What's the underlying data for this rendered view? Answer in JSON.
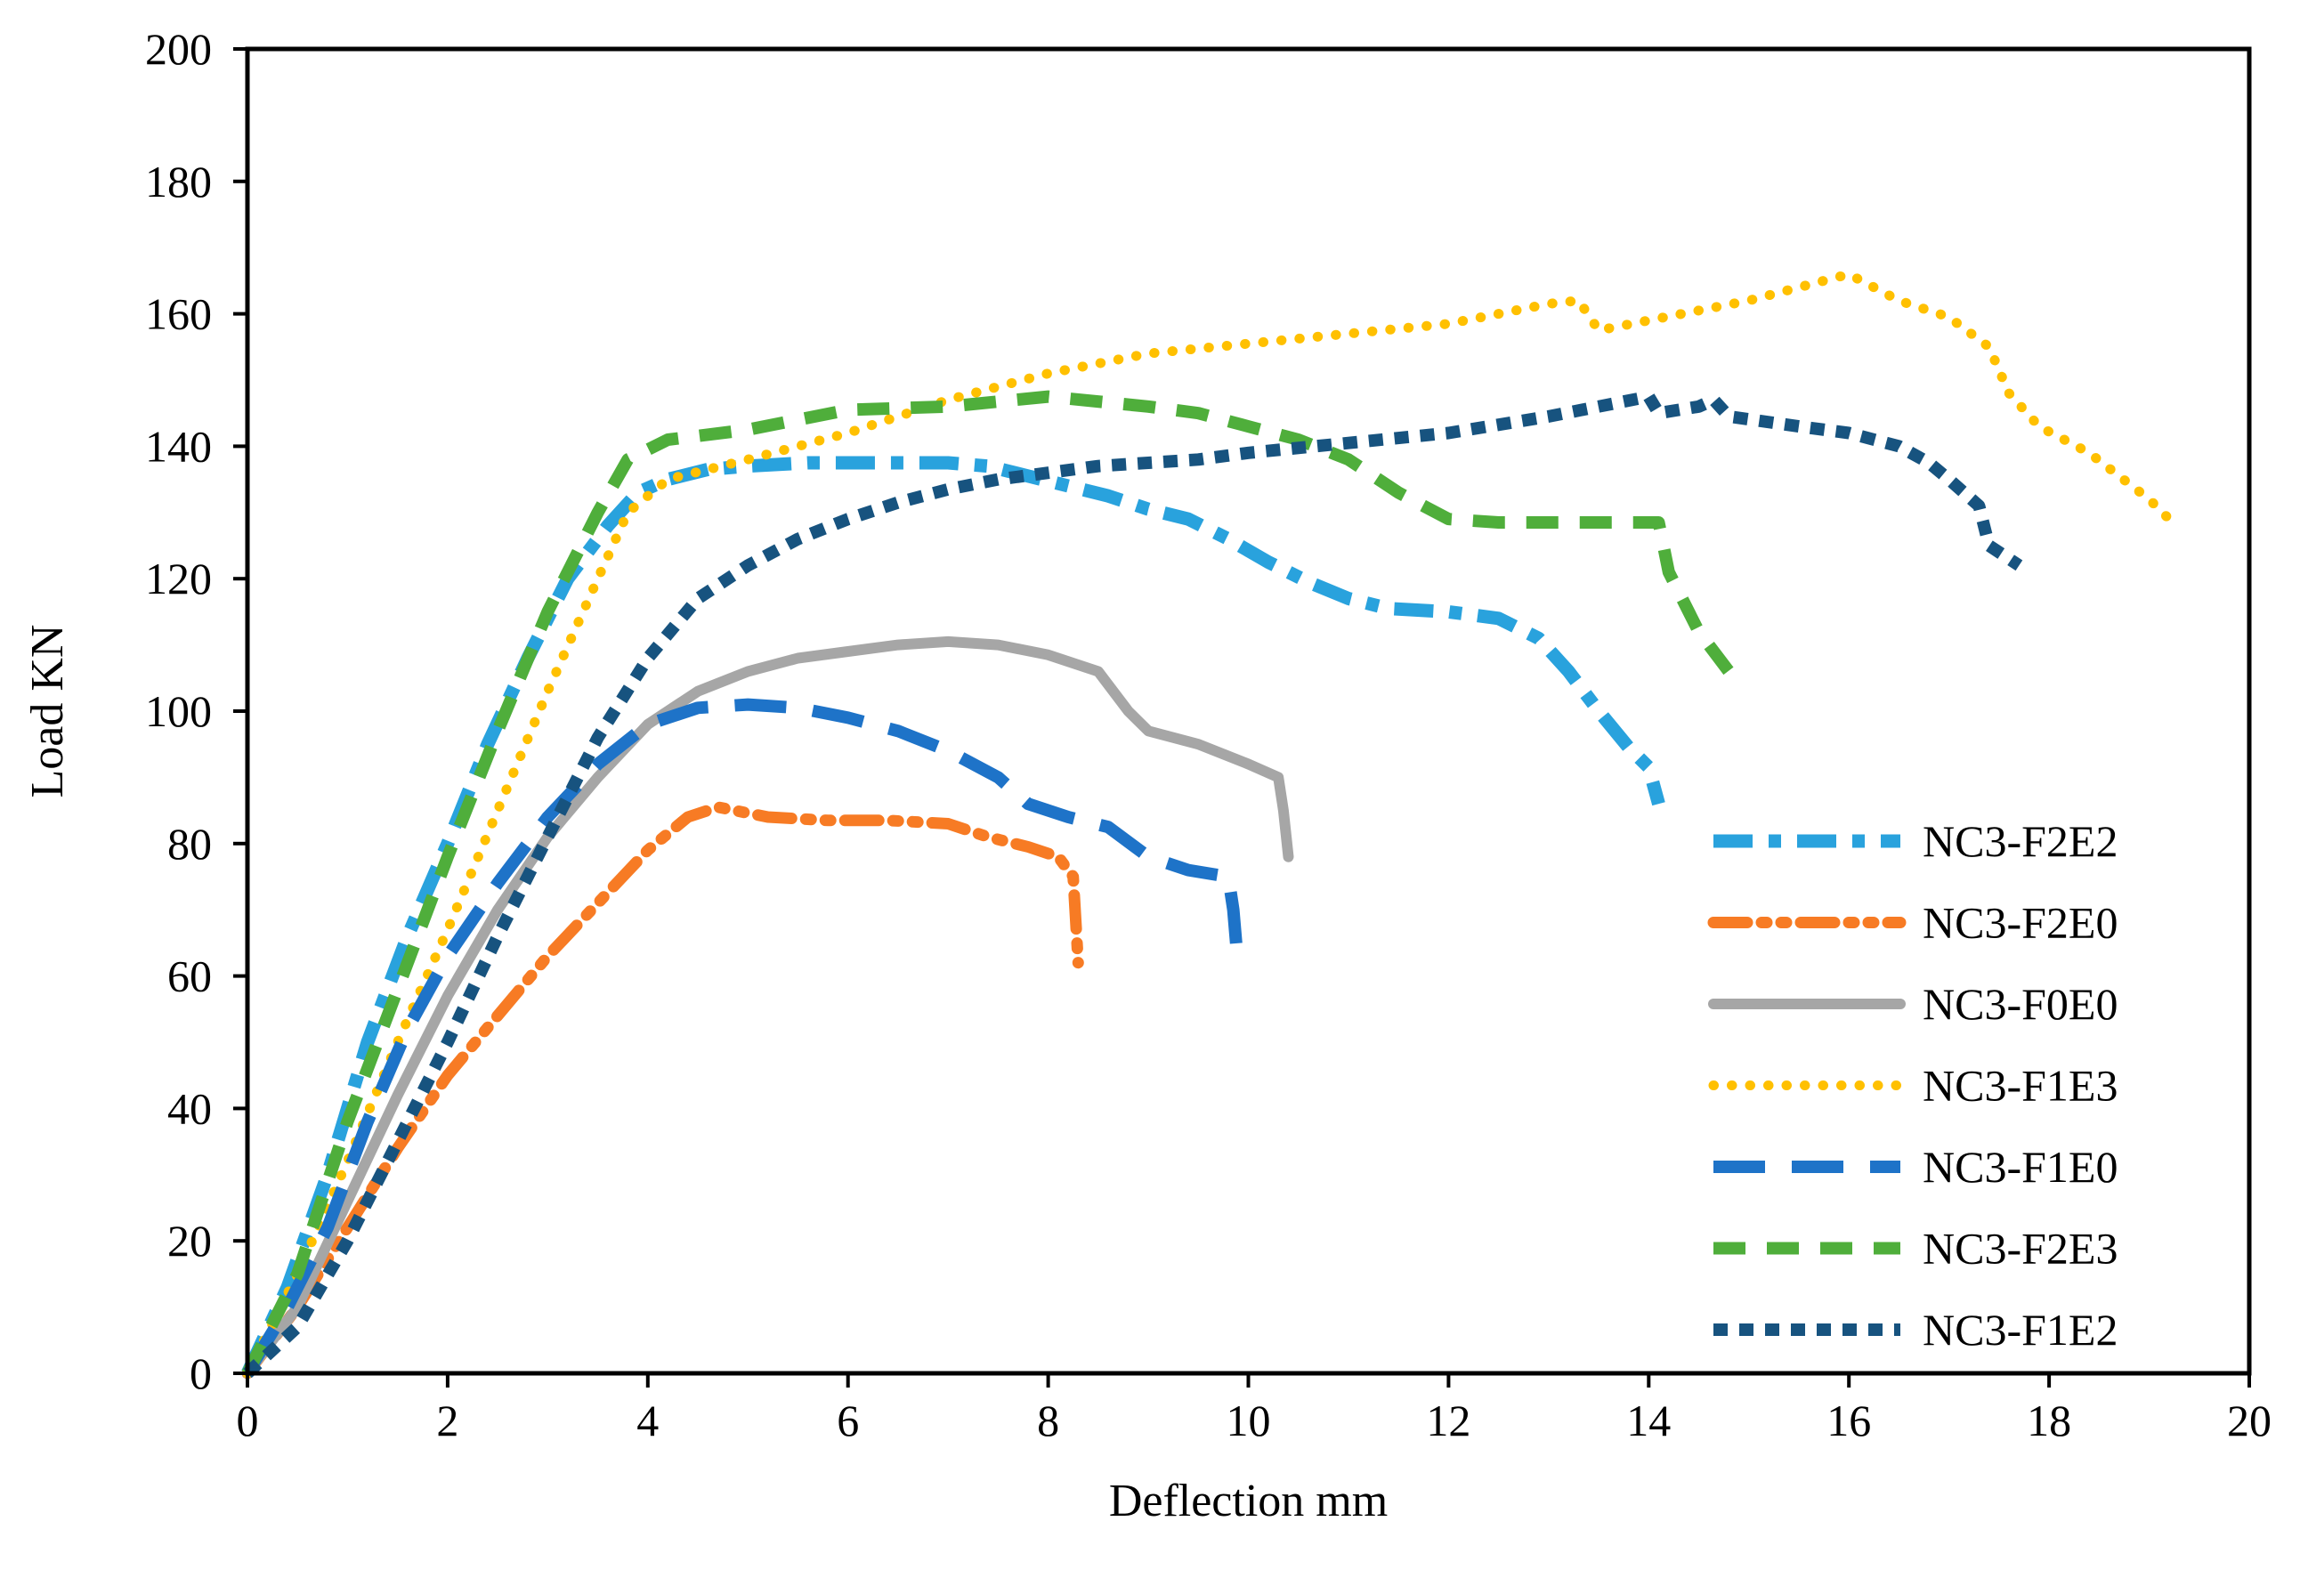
{
  "chart_data": {
    "type": "line",
    "title": "",
    "xlabel": "Deflection mm",
    "ylabel": "Load KN",
    "xlim": [
      0,
      20
    ],
    "ylim": [
      0,
      200
    ],
    "xticks": [
      0,
      2,
      4,
      6,
      8,
      10,
      12,
      14,
      16,
      18,
      20
    ],
    "yticks": [
      0,
      20,
      40,
      60,
      80,
      100,
      120,
      140,
      160,
      180,
      200
    ],
    "grid": false,
    "legend_position": "bottom-right",
    "series": [
      {
        "name": "NC3-F2E2",
        "color": "#29A2DD",
        "dash": "long-dash-dot",
        "points": [
          [
            0,
            0
          ],
          [
            0.4,
            13
          ],
          [
            0.8,
            30
          ],
          [
            1.2,
            50
          ],
          [
            1.6,
            66
          ],
          [
            2.0,
            80
          ],
          [
            2.4,
            95
          ],
          [
            2.8,
            108
          ],
          [
            3.2,
            120
          ],
          [
            3.6,
            128
          ],
          [
            3.9,
            133
          ],
          [
            4.2,
            135
          ],
          [
            4.6,
            136.5
          ],
          [
            5.0,
            137
          ],
          [
            5.6,
            137.5
          ],
          [
            6.4,
            137.5
          ],
          [
            7.0,
            137.5
          ],
          [
            7.4,
            137
          ],
          [
            7.8,
            135.5
          ],
          [
            8.2,
            134
          ],
          [
            8.6,
            132.5
          ],
          [
            9.0,
            130.5
          ],
          [
            9.4,
            129
          ],
          [
            9.8,
            126
          ],
          [
            10.2,
            122.5
          ],
          [
            10.6,
            119.5
          ],
          [
            11.0,
            117
          ],
          [
            11.4,
            115.5
          ],
          [
            12.0,
            115
          ],
          [
            12.5,
            114
          ],
          [
            12.9,
            111
          ],
          [
            13.2,
            106
          ],
          [
            13.5,
            100
          ],
          [
            13.8,
            94.5
          ],
          [
            14.0,
            91.5
          ],
          [
            14.1,
            86
          ]
        ]
      },
      {
        "name": "NC3-F2E0",
        "color": "#F77B24",
        "dash": "long-dash-dot-dot",
        "points": [
          [
            0,
            0
          ],
          [
            0.5,
            10
          ],
          [
            1.0,
            22
          ],
          [
            1.5,
            34
          ],
          [
            2.0,
            45
          ],
          [
            2.5,
            54
          ],
          [
            3.0,
            63
          ],
          [
            3.5,
            71
          ],
          [
            4.0,
            79
          ],
          [
            4.4,
            84
          ],
          [
            4.7,
            85.5
          ],
          [
            5.2,
            84
          ],
          [
            5.8,
            83.5
          ],
          [
            6.4,
            83.5
          ],
          [
            7.0,
            83
          ],
          [
            7.4,
            81
          ],
          [
            7.8,
            79.5
          ],
          [
            8.1,
            78
          ],
          [
            8.25,
            75
          ],
          [
            8.3,
            62
          ]
        ]
      },
      {
        "name": "NC3-F0E0",
        "color": "#A6A6A6",
        "dash": "solid",
        "points": [
          [
            0,
            0
          ],
          [
            0.5,
            10
          ],
          [
            1.0,
            26
          ],
          [
            1.5,
            42
          ],
          [
            2.0,
            57
          ],
          [
            2.5,
            70
          ],
          [
            3.0,
            81
          ],
          [
            3.5,
            90
          ],
          [
            4.0,
            98
          ],
          [
            4.5,
            103
          ],
          [
            5.0,
            106
          ],
          [
            5.5,
            108
          ],
          [
            6.0,
            109
          ],
          [
            6.5,
            110
          ],
          [
            7.0,
            110.5
          ],
          [
            7.5,
            110
          ],
          [
            8.0,
            108.5
          ],
          [
            8.5,
            106
          ],
          [
            8.8,
            100
          ],
          [
            9.0,
            97
          ],
          [
            9.5,
            95
          ],
          [
            10.0,
            92
          ],
          [
            10.3,
            90
          ],
          [
            10.35,
            85
          ],
          [
            10.4,
            78
          ]
        ]
      },
      {
        "name": "NC3-F1E3",
        "color": "#FFC000",
        "dash": "round-dot",
        "points": [
          [
            0,
            0
          ],
          [
            0.5,
            15
          ],
          [
            1.0,
            32
          ],
          [
            1.5,
            50
          ],
          [
            2.0,
            67
          ],
          [
            2.5,
            85
          ],
          [
            3.0,
            103
          ],
          [
            3.5,
            120
          ],
          [
            3.8,
            130
          ],
          [
            4.2,
            135
          ],
          [
            5.0,
            138
          ],
          [
            6.0,
            142
          ],
          [
            7.0,
            147
          ],
          [
            8.0,
            151
          ],
          [
            9.0,
            154
          ],
          [
            10.0,
            155.5
          ],
          [
            11.0,
            157
          ],
          [
            12.0,
            158.5
          ],
          [
            13.0,
            161.5
          ],
          [
            13.3,
            162
          ],
          [
            13.5,
            157.5
          ],
          [
            14.0,
            159
          ],
          [
            15.0,
            162
          ],
          [
            16.0,
            166
          ],
          [
            16.5,
            162
          ],
          [
            17.0,
            159.5
          ],
          [
            17.4,
            155
          ],
          [
            17.6,
            148
          ],
          [
            17.9,
            143
          ],
          [
            18.4,
            139
          ],
          [
            19.0,
            132
          ],
          [
            19.2,
            129
          ]
        ]
      },
      {
        "name": "NC3-F1E0",
        "color": "#1E73C8",
        "dash": "long-dash",
        "points": [
          [
            0,
            0
          ],
          [
            0.4,
            10
          ],
          [
            0.8,
            22
          ],
          [
            1.2,
            38
          ],
          [
            1.6,
            52
          ],
          [
            2.0,
            63
          ],
          [
            2.5,
            74
          ],
          [
            3.0,
            84
          ],
          [
            3.5,
            92
          ],
          [
            4.0,
            98
          ],
          [
            4.5,
            100.5
          ],
          [
            5.0,
            101
          ],
          [
            5.5,
            100.5
          ],
          [
            6.0,
            99
          ],
          [
            6.5,
            97
          ],
          [
            7.0,
            94
          ],
          [
            7.5,
            90
          ],
          [
            7.8,
            86
          ],
          [
            8.2,
            84
          ],
          [
            8.6,
            82.5
          ],
          [
            9.0,
            78
          ],
          [
            9.4,
            76
          ],
          [
            9.8,
            75
          ],
          [
            9.85,
            70
          ],
          [
            9.9,
            61
          ]
        ]
      },
      {
        "name": "NC3-F2E3",
        "color": "#4FAE3B",
        "dash": "dash",
        "points": [
          [
            0,
            0
          ],
          [
            0.5,
            15
          ],
          [
            1.0,
            38
          ],
          [
            1.5,
            58
          ],
          [
            2.0,
            78
          ],
          [
            2.5,
            97
          ],
          [
            3.0,
            115
          ],
          [
            3.5,
            130
          ],
          [
            3.8,
            138
          ],
          [
            4.2,
            141
          ],
          [
            5.0,
            142.5
          ],
          [
            6.0,
            145.5
          ],
          [
            7.0,
            146
          ],
          [
            8.0,
            147.5
          ],
          [
            9.0,
            146
          ],
          [
            9.5,
            145
          ],
          [
            10.0,
            143
          ],
          [
            10.5,
            141
          ],
          [
            11.0,
            138
          ],
          [
            11.5,
            133
          ],
          [
            12.0,
            129
          ],
          [
            12.5,
            128.5
          ],
          [
            13.0,
            128.5
          ],
          [
            13.5,
            128.5
          ],
          [
            14.1,
            128.5
          ],
          [
            14.2,
            121
          ],
          [
            14.5,
            112
          ],
          [
            14.9,
            104
          ]
        ]
      },
      {
        "name": "NC3-F1E2",
        "color": "#17537F",
        "dash": "short-dash",
        "points": [
          [
            0,
            0
          ],
          [
            0.5,
            7
          ],
          [
            1.0,
            20
          ],
          [
            1.5,
            35
          ],
          [
            2.0,
            50
          ],
          [
            2.5,
            66
          ],
          [
            3.0,
            81
          ],
          [
            3.5,
            96
          ],
          [
            4.0,
            108
          ],
          [
            4.5,
            117
          ],
          [
            5.0,
            122
          ],
          [
            5.5,
            126
          ],
          [
            6.0,
            129
          ],
          [
            6.5,
            131.5
          ],
          [
            7.0,
            133.5
          ],
          [
            7.5,
            135
          ],
          [
            8.0,
            136
          ],
          [
            8.5,
            137
          ],
          [
            9.0,
            137.5
          ],
          [
            9.5,
            138
          ],
          [
            10.0,
            139
          ],
          [
            11.0,
            140.5
          ],
          [
            12.0,
            142
          ],
          [
            13.0,
            144.5
          ],
          [
            14.0,
            147.5
          ],
          [
            14.1,
            145
          ],
          [
            14.5,
            146
          ],
          [
            14.65,
            147
          ],
          [
            14.8,
            144.5
          ],
          [
            15.5,
            143
          ],
          [
            16.0,
            142
          ],
          [
            16.5,
            140
          ],
          [
            16.8,
            137.5
          ],
          [
            17.0,
            135
          ],
          [
            17.3,
            131
          ],
          [
            17.4,
            125
          ],
          [
            17.7,
            122
          ]
        ]
      }
    ]
  }
}
